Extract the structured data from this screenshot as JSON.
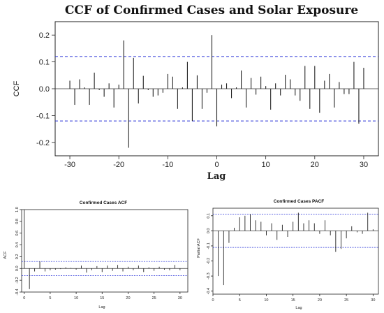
{
  "chart_data": [
    {
      "type": "bar",
      "title": "CCF of Confirmed Cases and Solar Exposure",
      "xlabel": "Lag",
      "ylabel": "CCF",
      "xlim": [
        -33,
        33
      ],
      "ylim": [
        -0.25,
        0.25
      ],
      "xticks": [
        -30,
        -20,
        -10,
        0,
        10,
        20,
        30
      ],
      "yticks": [
        0.2,
        0.1,
        0.0,
        -0.1,
        -0.2
      ],
      "ytick_labels": [
        "0.2",
        "0.1",
        "0.0",
        "-0.1",
        "-0.2"
      ],
      "confidence_band": 0.12,
      "x": [
        -30,
        -29,
        -28,
        -27,
        -26,
        -25,
        -24,
        -23,
        -22,
        -21,
        -20,
        -19,
        -18,
        -17,
        -16,
        -15,
        -14,
        -13,
        -12,
        -11,
        -10,
        -9,
        -8,
        -7,
        -6,
        -5,
        -4,
        -3,
        -2,
        -1,
        0,
        1,
        2,
        3,
        4,
        5,
        6,
        7,
        8,
        9,
        10,
        11,
        12,
        13,
        14,
        15,
        16,
        17,
        18,
        19,
        20,
        21,
        22,
        23,
        24,
        25,
        26,
        27,
        28,
        29,
        30
      ],
      "values": [
        0.03,
        -0.06,
        0.035,
        0.005,
        -0.06,
        0.06,
        -0.005,
        -0.03,
        0.02,
        -0.07,
        0.015,
        0.18,
        -0.22,
        0.115,
        -0.055,
        0.048,
        -0.005,
        -0.03,
        -0.025,
        -0.015,
        0.055,
        0.045,
        -0.075,
        0.005,
        0.1,
        -0.12,
        0.05,
        -0.075,
        -0.015,
        0.2,
        -0.14,
        0.015,
        0.02,
        -0.035,
        0.005,
        0.068,
        -0.07,
        0.04,
        -0.022,
        0.045,
        0.01,
        -0.078,
        0.02,
        -0.025,
        0.052,
        0.035,
        -0.025,
        -0.045,
        0.085,
        -0.075,
        0.085,
        -0.09,
        0.03,
        0.055,
        -0.07,
        0.025,
        -0.02,
        -0.02,
        0.1,
        -0.13,
        0.078
      ],
      "grid": false,
      "legend": "none"
    },
    {
      "type": "bar",
      "title": "Confirmed Cases ACF",
      "xlabel": "Lag",
      "ylabel": "ACF",
      "xlim": [
        -0.5,
        31.5
      ],
      "ylim": [
        -0.4,
        1.0
      ],
      "xticks": [
        0,
        5,
        10,
        15,
        20,
        25,
        30
      ],
      "yticks": [
        1.0,
        0.8,
        0.6,
        0.4,
        0.2,
        0.0,
        -0.2,
        -0.4
      ],
      "ytick_labels": [
        "1.0",
        "0.8",
        "0.6",
        "0.4",
        "0.2",
        "0.0",
        "-0.2",
        "-0.4"
      ],
      "confidence_band": 0.12,
      "x": [
        0,
        1,
        2,
        3,
        4,
        5,
        6,
        7,
        8,
        9,
        10,
        11,
        12,
        13,
        14,
        15,
        16,
        17,
        18,
        19,
        20,
        21,
        22,
        23,
        24,
        25,
        26,
        27,
        28,
        29,
        30
      ],
      "values": [
        1.0,
        -0.35,
        -0.05,
        0.12,
        -0.05,
        -0.03,
        -0.02,
        -0.01,
        0.02,
        0.01,
        -0.02,
        0.05,
        -0.07,
        -0.03,
        0.04,
        -0.06,
        0.05,
        -0.04,
        0.06,
        -0.05,
        0.03,
        -0.03,
        0.05,
        -0.06,
        0.02,
        -0.04,
        0.03,
        -0.02,
        -0.03,
        0.06,
        -0.03
      ],
      "grid": false,
      "legend": "none"
    },
    {
      "type": "bar",
      "title": "Confirmed Cases PACF",
      "xlabel": "Lag",
      "ylabel": "Partial ACF",
      "xlim": [
        0,
        31
      ],
      "ylim": [
        -0.42,
        0.15
      ],
      "xticks": [
        0,
        5,
        10,
        15,
        20,
        25,
        30
      ],
      "yticks": [
        0.1,
        0.0,
        -0.1,
        -0.2,
        -0.3,
        -0.4
      ],
      "ytick_labels": [
        "0.1",
        "0.0",
        "-0.1",
        "-0.2",
        "-0.3",
        "-0.4"
      ],
      "confidence_band": 0.11,
      "x": [
        1,
        2,
        3,
        4,
        5,
        6,
        7,
        8,
        9,
        10,
        11,
        12,
        13,
        14,
        15,
        16,
        17,
        18,
        19,
        20,
        21,
        22,
        23,
        24,
        25,
        26,
        27,
        28,
        29,
        30
      ],
      "values": [
        -0.3,
        -0.36,
        -0.08,
        0.02,
        0.09,
        0.1,
        0.11,
        0.07,
        0.06,
        -0.03,
        0.05,
        -0.06,
        0.04,
        -0.04,
        0.06,
        0.12,
        0.05,
        0.07,
        0.05,
        -0.02,
        0.07,
        -0.03,
        -0.14,
        -0.12,
        -0.05,
        0.03,
        -0.01,
        -0.02,
        0.12,
        0.01
      ],
      "grid": false,
      "legend": "none"
    }
  ]
}
